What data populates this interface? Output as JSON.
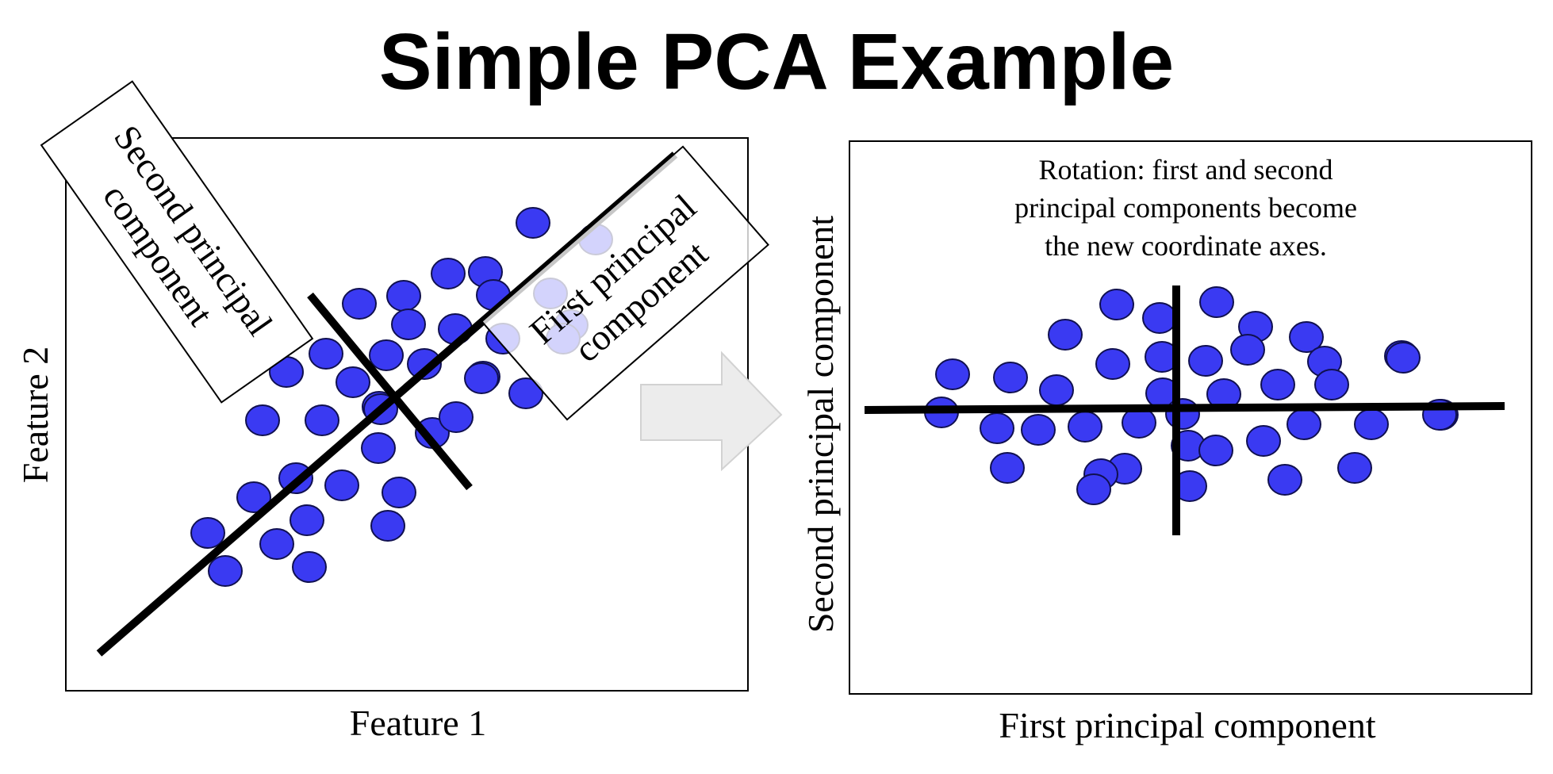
{
  "slide": {
    "title": "Simple PCA Example"
  },
  "left_plot": {
    "xlabel": "Feature 1",
    "ylabel": "Feature 2",
    "label_first_pc": [
      "First principal",
      "component"
    ],
    "label_second_pc": [
      "Second principal",
      "component"
    ]
  },
  "right_plot": {
    "xlabel": "First principal component",
    "ylabel": "Second principal component",
    "caption": [
      "Rotation: first and second",
      "principal components become",
      "the new coordinate axes."
    ]
  },
  "colors": {
    "point_fill": "#3a3af2",
    "point_stroke": "#101050",
    "axis_line": "#000000",
    "arrow_fill": "#ececec"
  },
  "icons": {
    "arrow": "right-arrow-icon"
  }
}
